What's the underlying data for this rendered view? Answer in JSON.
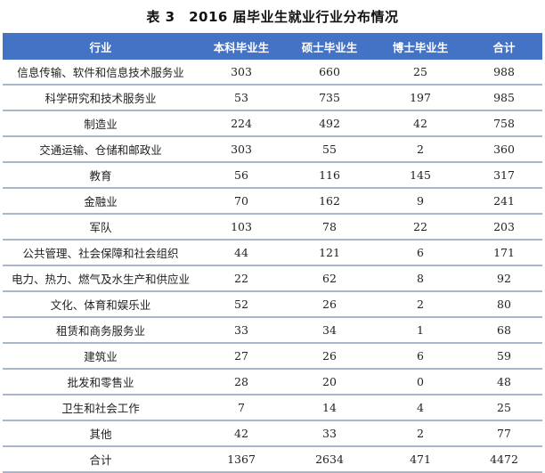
{
  "title": "表 3　2016 届毕业生就业行业分布情况",
  "table": {
    "headers": [
      "行业",
      "本科毕业生",
      "硕士毕业生",
      "博士毕业生",
      "合计"
    ],
    "rows": [
      [
        "信息传输、软件和信息技术服务业",
        "303",
        "660",
        "25",
        "988"
      ],
      [
        "科学研究和技术服务业",
        "53",
        "735",
        "197",
        "985"
      ],
      [
        "制造业",
        "224",
        "492",
        "42",
        "758"
      ],
      [
        "交通运输、仓储和邮政业",
        "303",
        "55",
        "2",
        "360"
      ],
      [
        "教育",
        "56",
        "116",
        "145",
        "317"
      ],
      [
        "金融业",
        "70",
        "162",
        "9",
        "241"
      ],
      [
        "军队",
        "103",
        "78",
        "22",
        "203"
      ],
      [
        "公共管理、社会保障和社会组织",
        "44",
        "121",
        "6",
        "171"
      ],
      [
        "电力、热力、燃气及水生产和供应业",
        "22",
        "62",
        "8",
        "92"
      ],
      [
        "文化、体育和娱乐业",
        "52",
        "26",
        "2",
        "80"
      ],
      [
        "租赁和商务服务业",
        "33",
        "34",
        "1",
        "68"
      ],
      [
        "建筑业",
        "27",
        "26",
        "6",
        "59"
      ],
      [
        "批发和零售业",
        "28",
        "20",
        "0",
        "48"
      ],
      [
        "卫生和社会工作",
        "7",
        "14",
        "4",
        "25"
      ],
      [
        "其他",
        "42",
        "33",
        "2",
        "77"
      ],
      [
        "合计",
        "1367",
        "2634",
        "471",
        "4472"
      ]
    ]
  },
  "colors": {
    "header_bg": "#4472C4",
    "header_text": "#FFFFFF",
    "row_border": "#A9B6CC"
  }
}
